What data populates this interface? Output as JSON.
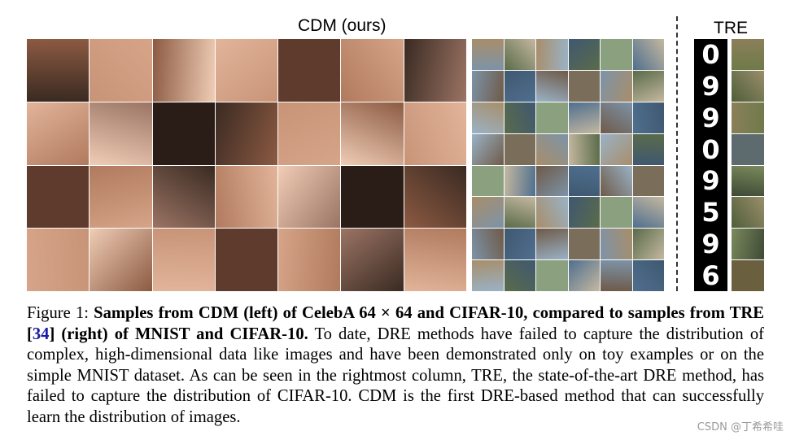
{
  "headings": {
    "cdm": "CDM (ours)",
    "tre": "TRE"
  },
  "mnist_digits": [
    "0",
    "9",
    "9",
    "0",
    "9",
    "5",
    "9",
    "6"
  ],
  "caption": {
    "figure_label": "Figure 1:",
    "bold_part1": "Samples from CDM (left) of CelebA 64 × 64 and CIFAR-10, compared to samples from TRE [",
    "citation": "34",
    "bold_part2": "] (right) of MNIST and CIFAR-10.",
    "body": "To date, DRE methods have failed to capture the distribution of complex, high-dimensional data like images and have been demonstrated only on toy examples or on the simple MNIST dataset. As can be seen in the rightmost column, TRE, the state-of-the-art DRE method, has failed to capture the distribution of CIFAR-10. CDM is the first DRE-based method that can successfully learn the distribution of images."
  },
  "watermark": "CSDN @丁希希哇",
  "colors": {
    "citation": "#1a1aa6",
    "divider": "#333333",
    "mnist_background": "#000000"
  }
}
